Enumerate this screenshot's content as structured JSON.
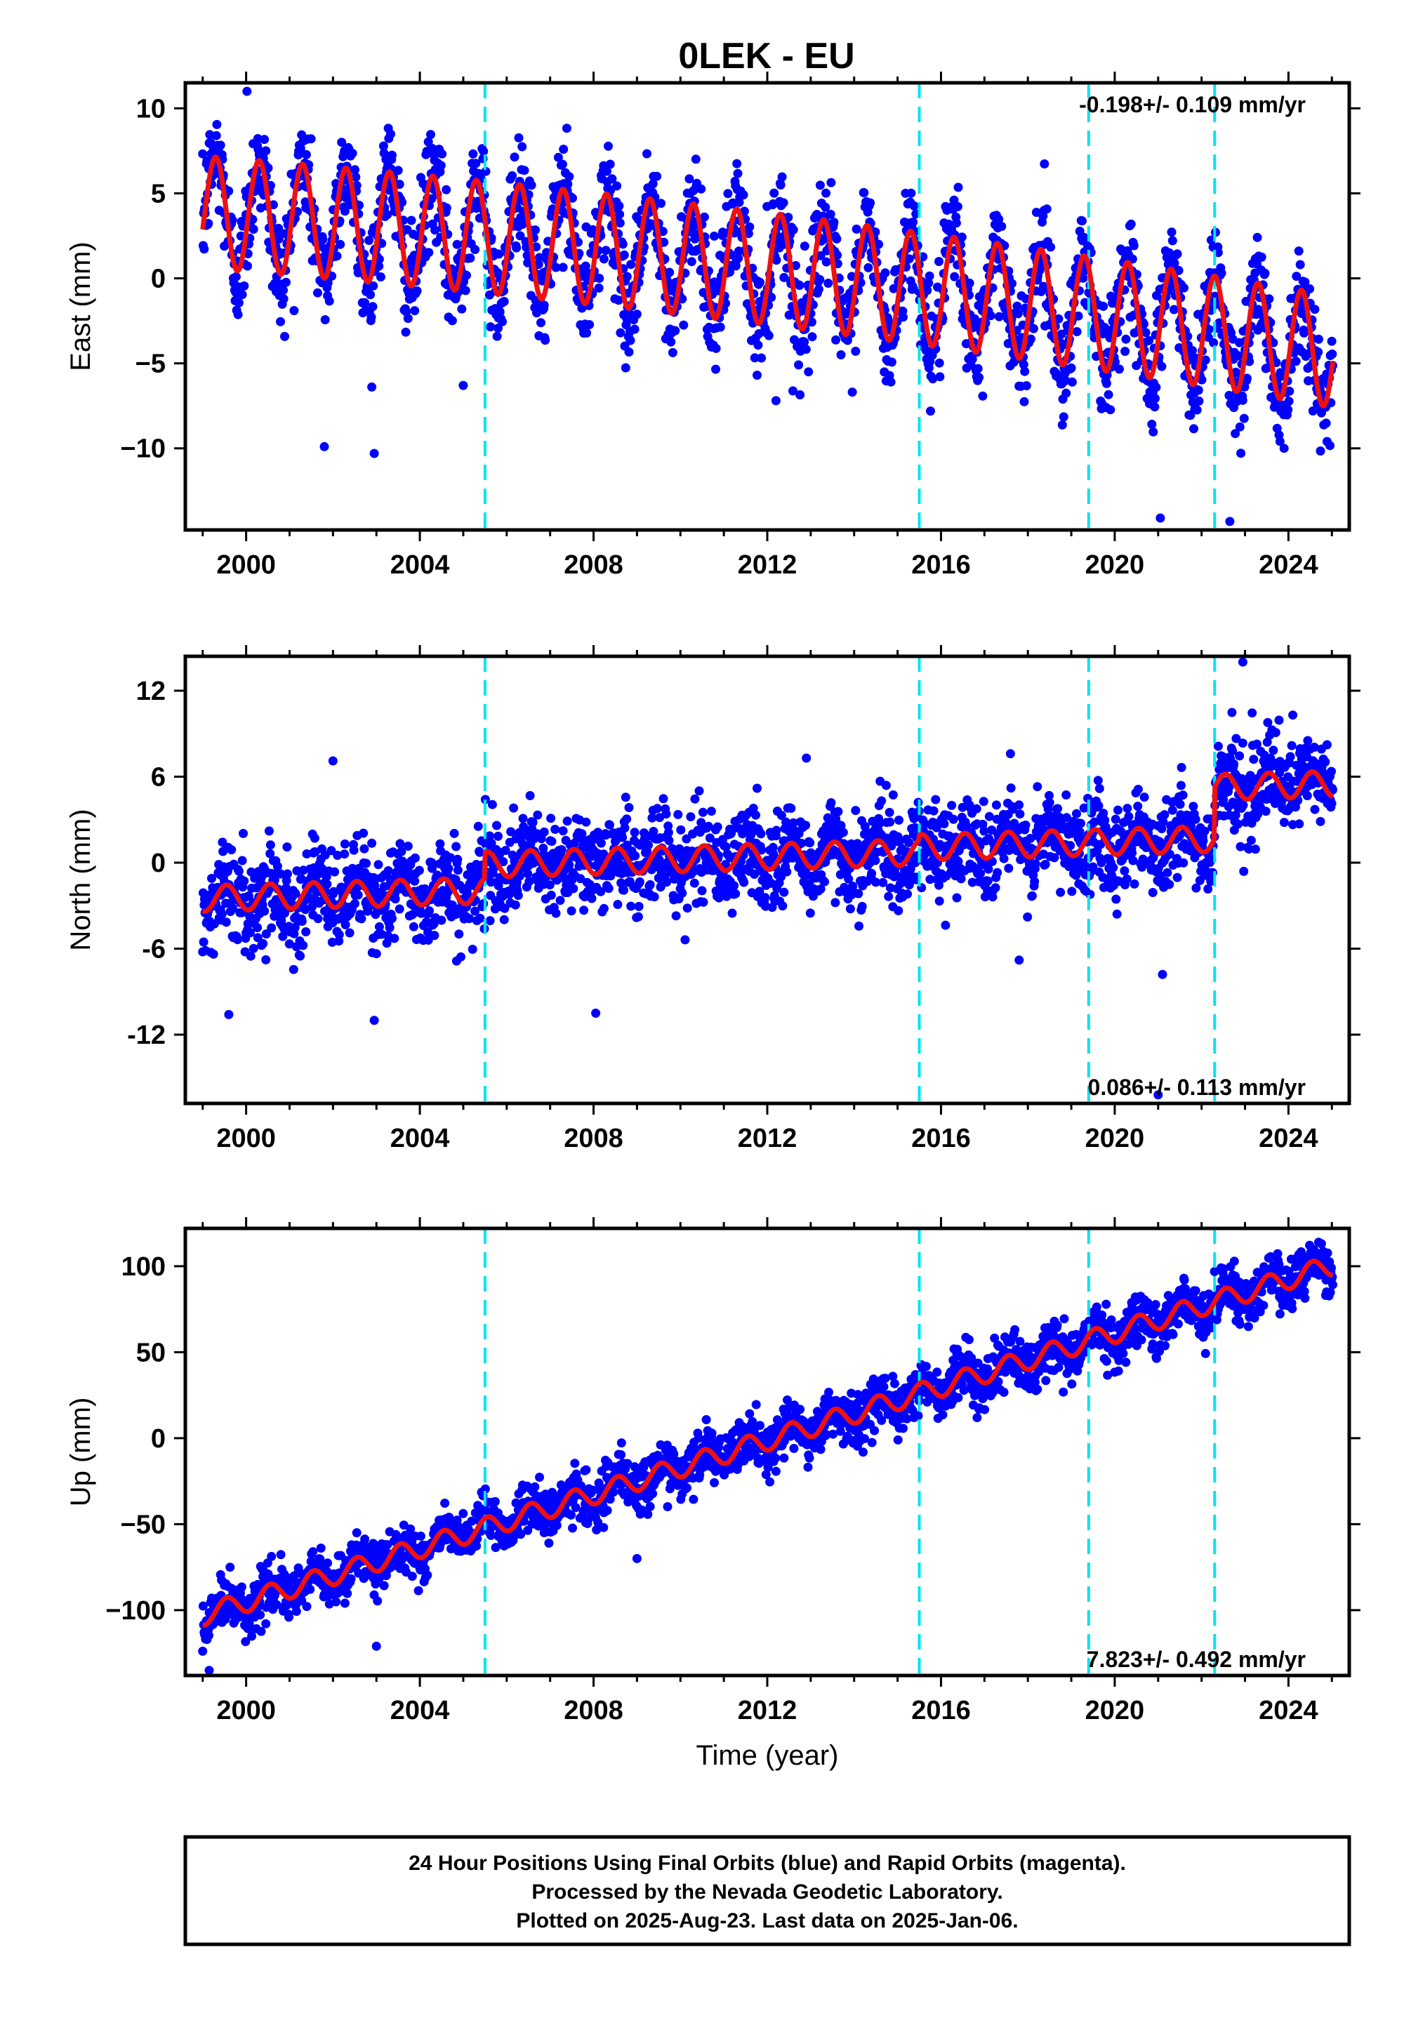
{
  "title": "0LEK - EU",
  "colors": {
    "points": "#0000ff",
    "fit": "#ee1111",
    "steps": "#00e5ee",
    "frame": "#000000"
  },
  "chart_data": [
    {
      "type": "scatter",
      "component": "East",
      "ylabel": "East (mm)",
      "xlabel": "",
      "xlim": [
        1998.6,
        2025.4
      ],
      "ylim": [
        -14.8,
        11.5
      ],
      "xticks": [
        2000,
        2004,
        2008,
        2012,
        2016,
        2020,
        2024
      ],
      "yticks": [
        10,
        5,
        0,
        -5,
        -10
      ],
      "ytick_labels": [
        "10",
        "5",
        "0",
        "−5",
        "−10"
      ],
      "rate_text": "-0.198+/- 0.109 mm/yr",
      "rate_position": "top-right",
      "step_epochs": [
        2005.5,
        2015.5,
        2019.4,
        2022.3
      ],
      "data_range": [
        1999.0,
        2025.02
      ],
      "fit": {
        "offset0": 3.9,
        "trend": -0.198,
        "trend_curve": -0.0045,
        "amplitude": 3.3,
        "phase_year": 1999.05,
        "steps": [
          0,
          0,
          0,
          0
        ]
      },
      "noise": 1.6,
      "outliers": [
        [
          2000.02,
          11.0
        ],
        [
          2002.95,
          -10.3
        ],
        [
          2001.8,
          -9.9
        ],
        [
          2021.05,
          -14.1
        ],
        [
          2022.65,
          -14.3
        ],
        [
          2023.9,
          -10.0
        ],
        [
          2005.0,
          -6.3
        ],
        [
          2012.2,
          -7.2
        ]
      ]
    },
    {
      "type": "scatter",
      "component": "North",
      "ylabel": "North (mm)",
      "xlabel": "",
      "xlim": [
        1998.6,
        2025.4
      ],
      "ylim": [
        -16.8,
        14.4
      ],
      "xticks": [
        2000,
        2004,
        2008,
        2012,
        2016,
        2020,
        2024
      ],
      "yticks": [
        12,
        6,
        0,
        -6,
        -12
      ],
      "ytick_labels": [
        "12",
        "6",
        "0",
        "-6",
        "-12"
      ],
      "rate_text": "0.086+/- 0.113 mm/yr",
      "rate_position": "bottom-right",
      "step_epochs": [
        2005.5,
        2015.5,
        2019.4,
        2022.3
      ],
      "data_range": [
        1999.0,
        2025.02
      ],
      "fit": {
        "offset0": -2.5,
        "trend": 0.086,
        "trend_curve": 0,
        "amplitude": 0.9,
        "phase_year": 1999.3,
        "steps": [
          1.8,
          0.35,
          0.0,
          3.6
        ]
      },
      "noise": 1.6,
      "outliers": [
        [
          2022.95,
          14.0
        ],
        [
          1999.6,
          -10.6
        ],
        [
          2002.95,
          -11.0
        ],
        [
          2008.05,
          -10.5
        ],
        [
          2021.0,
          -16.2
        ],
        [
          2021.1,
          -7.8
        ],
        [
          2017.8,
          -6.8
        ],
        [
          2002.0,
          7.1
        ],
        [
          2012.9,
          7.3
        ],
        [
          2017.6,
          7.6
        ],
        [
          2024.1,
          10.3
        ]
      ]
    },
    {
      "type": "scatter",
      "component": "Up",
      "ylabel": "Up (mm)",
      "xlabel": "Time (year)",
      "xlim": [
        1998.6,
        2025.4
      ],
      "ylim": [
        -138,
        122
      ],
      "xticks": [
        2000,
        2004,
        2008,
        2012,
        2016,
        2020,
        2024
      ],
      "yticks": [
        100,
        50,
        0,
        -50,
        -100
      ],
      "ytick_labels": [
        "100",
        "50",
        "0",
        "−50",
        "−100"
      ],
      "rate_text": "7.823+/- 0.492 mm/yr",
      "rate_position": "bottom-right",
      "step_epochs": [
        2005.5,
        2015.5,
        2019.4,
        2022.3
      ],
      "data_range": [
        1999.0,
        2025.02
      ],
      "fit": {
        "offset0": -103,
        "trend": 7.823,
        "trend_curve": 0,
        "amplitude": 6.0,
        "phase_year": 1999.3,
        "steps": [
          0,
          0,
          0,
          0
        ]
      },
      "noise": 7.0,
      "outliers": [
        [
          1999.15,
          -135
        ],
        [
          2003.0,
          -121
        ],
        [
          2009.0,
          -70
        ],
        [
          2015.3,
          30
        ]
      ]
    }
  ],
  "footer": {
    "line1": "24 Hour Positions Using Final Orbits (blue) and Rapid Orbits (magenta).",
    "line2": "Processed by the Nevada Geodetic Laboratory.",
    "line3": "Plotted on 2025-Aug-23. Last data on 2025-Jan-06."
  }
}
